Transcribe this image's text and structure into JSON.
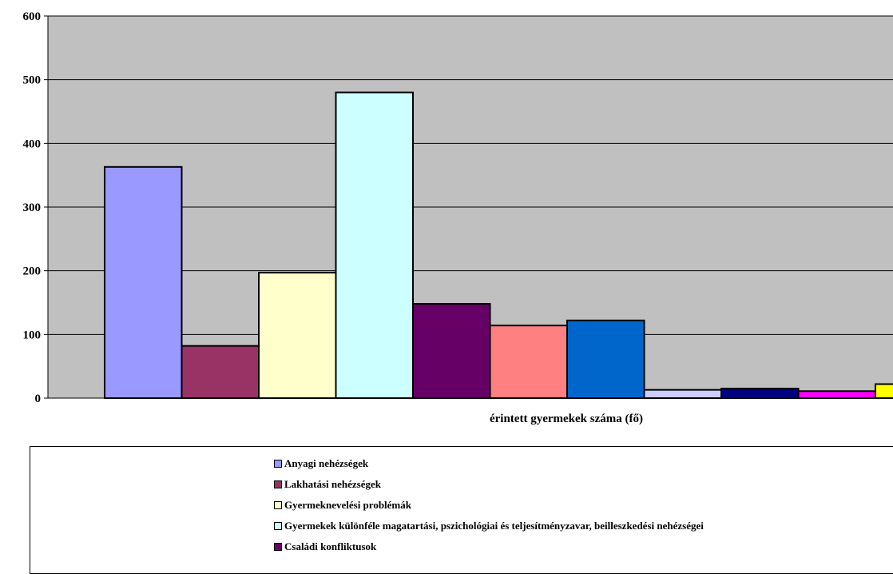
{
  "chart_data": {
    "type": "bar",
    "categories": [
      "érintett gyermekek száma (fő)"
    ],
    "xlabel": "érintett gyermekek száma (fő)",
    "ylabel": "",
    "ylim": [
      0,
      600
    ],
    "yticks": [
      0,
      100,
      200,
      300,
      400,
      500,
      600
    ],
    "grid": true,
    "plot_background": "#c0c0c0",
    "legend_position": "bottom",
    "series": [
      {
        "name": "Anyagi nehézségek",
        "value": 363,
        "color": "#9999ff"
      },
      {
        "name": "Lakhatási nehézségek",
        "value": 82,
        "color": "#993366"
      },
      {
        "name": "Gyermeknevelési problémák",
        "value": 197,
        "color": "#ffffcc"
      },
      {
        "name": "Gyermekek különféle magatartási, pszichológiai és teljesítményzavar, beilleszkedési nehézségei",
        "value": 480,
        "color": "#ccffff"
      },
      {
        "name": "Családi konfliktusok",
        "value": 148,
        "color": "#660066"
      },
      {
        "name": "",
        "value": 114,
        "color": "#ff8080"
      },
      {
        "name": "",
        "value": 122,
        "color": "#0066cc"
      },
      {
        "name": "",
        "value": 13,
        "color": "#ccccff"
      },
      {
        "name": "",
        "value": 15,
        "color": "#000080"
      },
      {
        "name": "",
        "value": 11,
        "color": "#ff00ff"
      },
      {
        "name": "",
        "value": 22,
        "color": "#ffff00"
      }
    ]
  }
}
